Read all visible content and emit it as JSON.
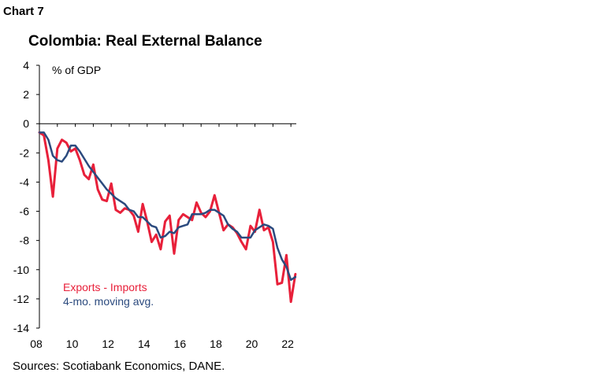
{
  "header": {
    "chart_number": "Chart 7",
    "title": "Colombia: Real External Balance"
  },
  "footer": {
    "source": "Sources: Scotiabank Economics, DANE."
  },
  "colors": {
    "exports_imports": "#e8203a",
    "moving_avg": "#2b4a7e",
    "axis": "#000000"
  },
  "chart_data": {
    "type": "line",
    "title": "Colombia: Real External Balance",
    "ylabel": "% of GDP",
    "xlabel": "",
    "ylim": [
      -14,
      4
    ],
    "yticks": [
      4,
      2,
      0,
      -2,
      -4,
      -6,
      -8,
      -10,
      -12,
      -14
    ],
    "xlim": [
      2008,
      2022.3
    ],
    "xticks": [
      {
        "value": 2008,
        "label": "08"
      },
      {
        "value": 2010,
        "label": "10"
      },
      {
        "value": 2012,
        "label": "12"
      },
      {
        "value": 2014,
        "label": "14"
      },
      {
        "value": 2016,
        "label": "16"
      },
      {
        "value": 2018,
        "label": "18"
      },
      {
        "value": 2020,
        "label": "20"
      },
      {
        "value": 2022,
        "label": "22"
      }
    ],
    "grid": false,
    "legend_position": "bottom-left",
    "series": [
      {
        "name": "Exports - Imports",
        "color": "#e8203a",
        "x": [
          2008.0,
          2008.25,
          2008.5,
          2008.75,
          2009.0,
          2009.25,
          2009.5,
          2009.75,
          2010.0,
          2010.25,
          2010.5,
          2010.75,
          2011.0,
          2011.25,
          2011.5,
          2011.75,
          2012.0,
          2012.25,
          2012.5,
          2012.75,
          2013.0,
          2013.25,
          2013.5,
          2013.75,
          2014.0,
          2014.25,
          2014.5,
          2014.75,
          2015.0,
          2015.25,
          2015.5,
          2015.75,
          2016.0,
          2016.25,
          2016.5,
          2016.75,
          2017.0,
          2017.25,
          2017.5,
          2017.75,
          2018.0,
          2018.25,
          2018.5,
          2018.75,
          2019.0,
          2019.25,
          2019.5,
          2019.75,
          2020.0,
          2020.25,
          2020.5,
          2020.75,
          2021.0,
          2021.25,
          2021.5,
          2021.75,
          2022.0,
          2022.25
        ],
        "y": [
          -0.6,
          -0.8,
          -2.5,
          -5.0,
          -1.7,
          -1.1,
          -1.3,
          -1.9,
          -1.7,
          -2.5,
          -3.5,
          -3.8,
          -2.8,
          -4.5,
          -5.2,
          -5.3,
          -4.1,
          -5.9,
          -6.1,
          -5.8,
          -5.9,
          -6.3,
          -7.4,
          -5.5,
          -6.7,
          -8.1,
          -7.6,
          -8.6,
          -6.7,
          -6.3,
          -8.9,
          -6.6,
          -6.2,
          -6.4,
          -6.6,
          -5.4,
          -6.1,
          -6.4,
          -6.0,
          -4.9,
          -6.1,
          -7.3,
          -6.9,
          -7.1,
          -7.5,
          -8.1,
          -8.6,
          -7.0,
          -7.4,
          -5.9,
          -7.3,
          -7.1,
          -8.1,
          -11.0,
          -10.9,
          -9.0,
          -12.2,
          -10.3
        ]
      },
      {
        "name": "4-mo. moving avg.",
        "color": "#2b4a7e",
        "x": [
          2008.0,
          2008.25,
          2008.5,
          2008.75,
          2009.0,
          2009.25,
          2009.5,
          2009.75,
          2010.0,
          2010.25,
          2010.5,
          2010.75,
          2011.0,
          2011.25,
          2011.5,
          2011.75,
          2012.0,
          2012.25,
          2012.5,
          2012.75,
          2013.0,
          2013.25,
          2013.5,
          2013.75,
          2014.0,
          2014.25,
          2014.5,
          2014.75,
          2015.0,
          2015.25,
          2015.5,
          2015.75,
          2016.0,
          2016.25,
          2016.5,
          2016.75,
          2017.0,
          2017.25,
          2017.5,
          2017.75,
          2018.0,
          2018.25,
          2018.5,
          2018.75,
          2019.0,
          2019.25,
          2019.5,
          2019.75,
          2020.0,
          2020.25,
          2020.5,
          2020.75,
          2021.0,
          2021.25,
          2021.5,
          2021.75,
          2022.0,
          2022.25
        ],
        "y": [
          -0.6,
          -0.6,
          -1.1,
          -2.2,
          -2.5,
          -2.6,
          -2.2,
          -1.5,
          -1.5,
          -1.9,
          -2.4,
          -2.9,
          -3.3,
          -3.7,
          -4.1,
          -4.5,
          -4.8,
          -5.1,
          -5.3,
          -5.5,
          -5.9,
          -6.0,
          -6.4,
          -6.4,
          -6.7,
          -7.0,
          -7.1,
          -7.8,
          -7.7,
          -7.4,
          -7.5,
          -7.1,
          -7.0,
          -6.9,
          -6.2,
          -6.2,
          -6.2,
          -6.1,
          -5.9,
          -5.9,
          -6.1,
          -6.3,
          -6.9,
          -7.2,
          -7.4,
          -7.8,
          -7.8,
          -7.8,
          -7.3,
          -7.1,
          -6.9,
          -7.0,
          -7.2,
          -8.5,
          -9.3,
          -9.8,
          -10.7,
          -10.5
        ]
      }
    ]
  }
}
